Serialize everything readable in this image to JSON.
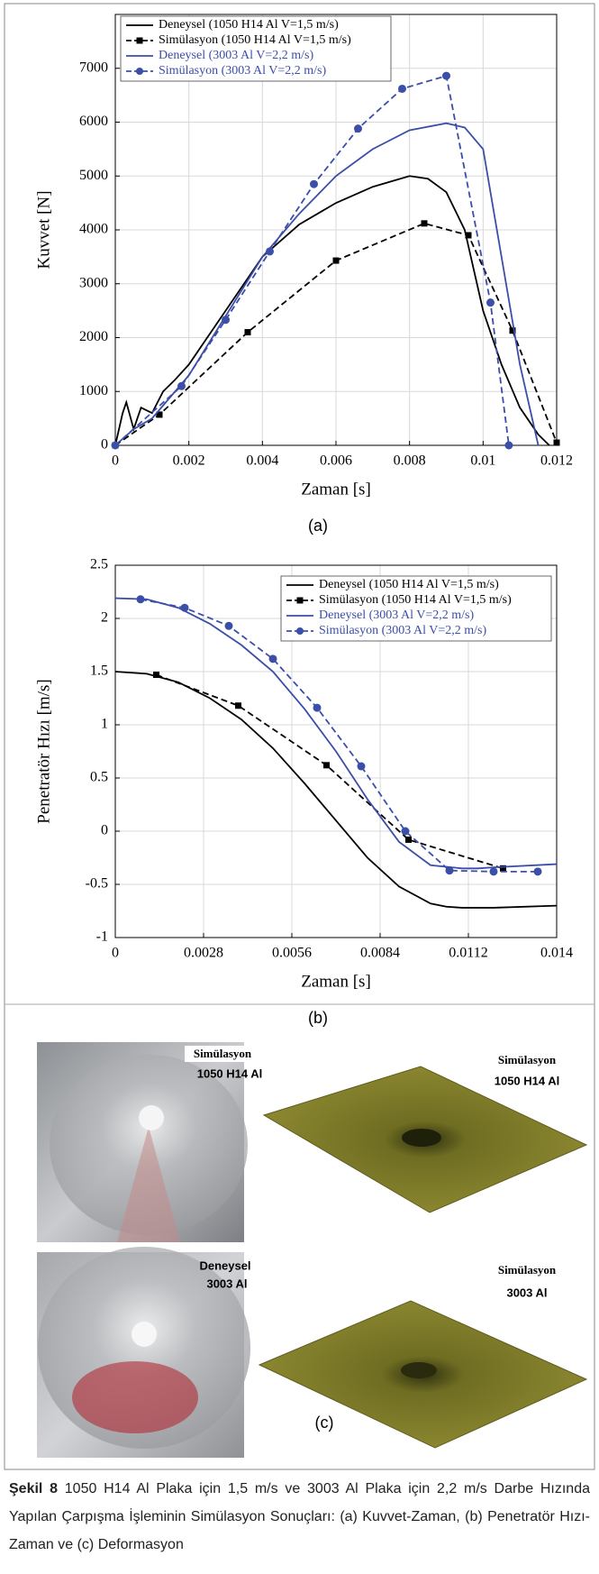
{
  "chart_data": [
    {
      "type": "line",
      "panel_label": "(a)",
      "x_label": "Zaman [s]",
      "y_label": "Kuvvet [N]",
      "xlim": [
        0,
        0.012
      ],
      "xticks": [
        0,
        0.002,
        0.004,
        0.006,
        0.008,
        0.01,
        0.012
      ],
      "ylim": [
        0,
        8000
      ],
      "yticks": [
        0,
        1000,
        2000,
        3000,
        4000,
        5000,
        6000,
        7000
      ],
      "grid": true,
      "legend": "upper left",
      "series": [
        {
          "name": "Deneysel (1050 H14 Al V=1,5 m/s)",
          "color": "#000000",
          "line_style": "solid",
          "marker": "none",
          "x": [
            0,
            0.0002,
            0.0003,
            0.0005,
            0.0007,
            0.001,
            0.0013,
            0.0016,
            0.002,
            0.0025,
            0.003,
            0.0035,
            0.004,
            0.0045,
            0.005,
            0.0055,
            0.006,
            0.0065,
            0.007,
            0.0075,
            0.008,
            0.0085,
            0.009,
            0.0095,
            0.01,
            0.0105,
            0.011,
            0.0115,
            0.0118
          ],
          "values": [
            0,
            600,
            800,
            300,
            700,
            600,
            1000,
            1200,
            1500,
            2000,
            2500,
            3000,
            3500,
            3800,
            4100,
            4300,
            4500,
            4650,
            4800,
            4900,
            5000,
            4950,
            4700,
            4000,
            2500,
            1500,
            700,
            200,
            0
          ]
        },
        {
          "name": "Simülasyon  (1050 H14 Al V=1,5 m/s)",
          "color": "#000000",
          "line_style": "dashed",
          "marker": "square",
          "x": [
            0,
            0.0012,
            0.0036,
            0.006,
            0.0084,
            0.0096,
            0.0108,
            0.012
          ],
          "values": [
            0,
            570,
            2100,
            3430,
            4120,
            3900,
            2130,
            50
          ]
        },
        {
          "name": "Deneysel (3003 Al V=2,2 m/s)",
          "color": "#3b4ea8",
          "line_style": "solid",
          "marker": "none",
          "x": [
            0,
            0.0005,
            0.001,
            0.0015,
            0.002,
            0.003,
            0.004,
            0.005,
            0.006,
            0.007,
            0.008,
            0.009,
            0.0095,
            0.01,
            0.0105,
            0.011,
            0.0115
          ],
          "values": [
            0,
            300,
            500,
            900,
            1300,
            2400,
            3500,
            4300,
            5000,
            5500,
            5850,
            5980,
            5900,
            5500,
            3500,
            1500,
            0
          ]
        },
        {
          "name": "Simülasyon  (3003 Al V=2,2 m/s)",
          "color": "#3b4ea8",
          "line_style": "dashed",
          "marker": "circle",
          "x": [
            0,
            0.0018,
            0.003,
            0.0042,
            0.0054,
            0.0066,
            0.0078,
            0.009,
            0.0102,
            0.0107
          ],
          "values": [
            0,
            1100,
            2330,
            3600,
            4850,
            5880,
            6620,
            6860,
            2650,
            0
          ]
        }
      ]
    },
    {
      "type": "line",
      "panel_label": "(b)",
      "x_label": "Zaman [s]",
      "y_label": "Penetratör Hızı [m/s]",
      "xlim": [
        0,
        0.014
      ],
      "xticks": [
        0,
        0.0028,
        0.0056,
        0.0084,
        0.0112,
        0.014
      ],
      "ylim": [
        -1,
        2.5
      ],
      "yticks": [
        -1,
        -0.5,
        0,
        0.5,
        1,
        1.5,
        2,
        2.5
      ],
      "grid": true,
      "legend": "upper right",
      "series": [
        {
          "name": "Deneysel (1050 H14 Al V=1,5 m/s)",
          "color": "#000000",
          "line_style": "solid",
          "marker": "none",
          "x": [
            0,
            0.001,
            0.002,
            0.003,
            0.004,
            0.005,
            0.006,
            0.007,
            0.008,
            0.009,
            0.01,
            0.0105,
            0.011,
            0.0115,
            0.012,
            0.014
          ],
          "values": [
            1.5,
            1.48,
            1.4,
            1.25,
            1.05,
            0.78,
            0.45,
            0.1,
            -0.25,
            -0.52,
            -0.68,
            -0.71,
            -0.72,
            -0.72,
            -0.72,
            -0.7
          ]
        },
        {
          "name": "Simülasyon  (1050 H14 Al V=1,5 m/s)",
          "color": "#000000",
          "line_style": "dashed",
          "marker": "square",
          "x": [
            0.0013,
            0.0039,
            0.0067,
            0.0093,
            0.0123
          ],
          "values": [
            1.47,
            1.18,
            0.62,
            -0.08,
            -0.35
          ]
        },
        {
          "name": "Deneysel (3003 Al V=2,2 m/s)",
          "color": "#3b4ea8",
          "line_style": "solid",
          "marker": "none",
          "x": [
            0,
            0.001,
            0.002,
            0.003,
            0.004,
            0.005,
            0.006,
            0.007,
            0.008,
            0.009,
            0.01,
            0.011,
            0.0115,
            0.012,
            0.014
          ],
          "values": [
            2.19,
            2.18,
            2.1,
            1.95,
            1.75,
            1.5,
            1.15,
            0.75,
            0.3,
            -0.1,
            -0.32,
            -0.35,
            -0.35,
            -0.34,
            -0.31
          ]
        },
        {
          "name": "Simülasyon  (3003 Al V=2,2 m/s)",
          "color": "#3b4ea8",
          "line_style": "dashed",
          "marker": "circle",
          "x": [
            0.0008,
            0.0022,
            0.0036,
            0.005,
            0.0064,
            0.0078,
            0.0092,
            0.0106,
            0.012,
            0.0134
          ],
          "values": [
            2.18,
            2.1,
            1.93,
            1.62,
            1.16,
            0.61,
            0,
            -0.37,
            -0.38,
            -0.38
          ]
        }
      ]
    }
  ],
  "panel_c": {
    "label": "(c)",
    "photos": [
      {
        "title": "Simülasyon",
        "material": "1050 H14 Al"
      },
      {
        "title": "Deneysel",
        "material": "3003 Al"
      }
    ],
    "simulations": [
      {
        "title": "Simülasyon",
        "material": "1050 H14 Al"
      },
      {
        "title": "Simülasyon",
        "material": "3003 Al"
      }
    ]
  },
  "caption": {
    "label": "Şekil 8",
    "text": "1050 H14 Al Plaka için 1,5 m/s ve 3003 Al Plaka için 2,2 m/s Darbe Hızında Yapılan Çarpışma İşleminin Simülasyon Sonuçları: (a) Kuvvet-Zaman, (b) Penetratör Hızı-Zaman ve (c) Deformasyon"
  }
}
